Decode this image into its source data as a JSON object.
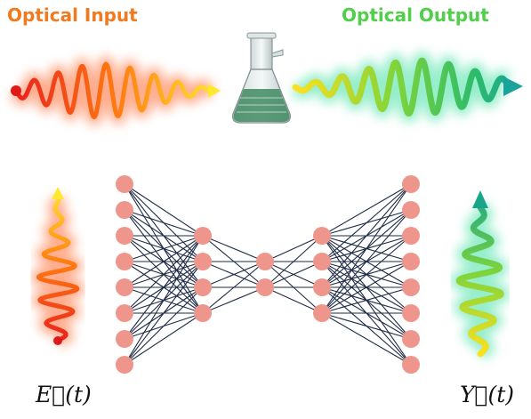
{
  "header": {
    "input_title": "Optical Input",
    "output_title": "Optical Output"
  },
  "labels": {
    "input_field": "E⃗(t)",
    "output_field": "Y⃗(t)"
  }
}
